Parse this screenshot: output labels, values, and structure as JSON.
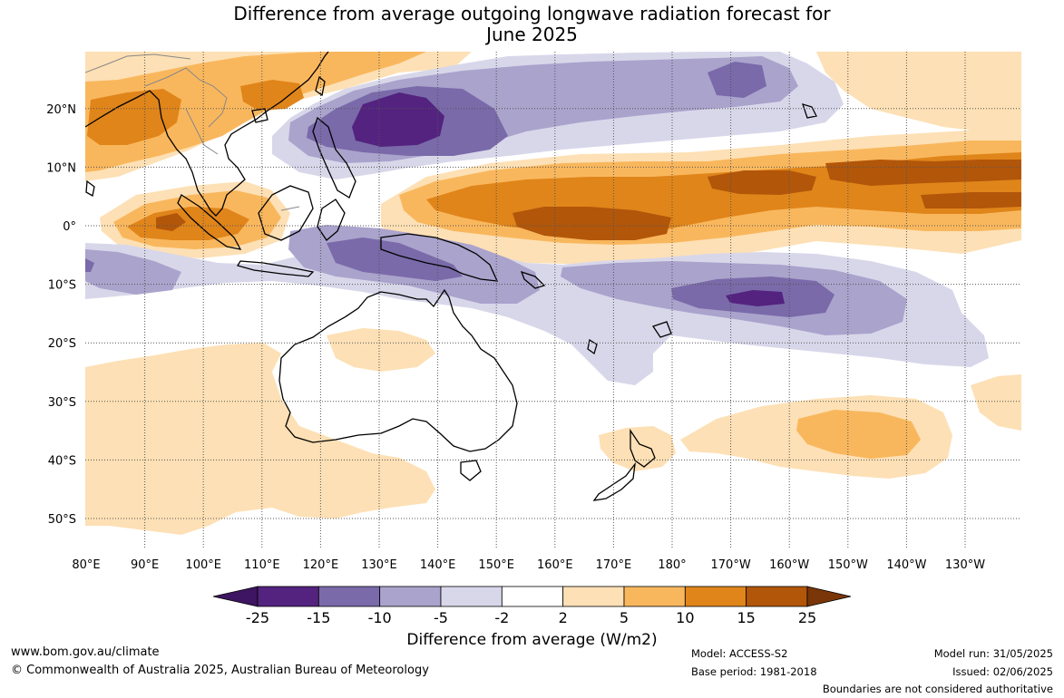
{
  "title_line1": "Difference from average outgoing longwave radiation forecast for",
  "title_line2": "June 2025",
  "lon_labels": [
    "80°E",
    "90°E",
    "100°E",
    "110°E",
    "120°E",
    "130°E",
    "140°E",
    "150°E",
    "160°E",
    "170°E",
    "180°",
    "170°W",
    "160°W",
    "150°W",
    "140°W",
    "130°W"
  ],
  "lat_labels": [
    "20°N",
    "10°N",
    "0°",
    "10°S",
    "20°S",
    "30°S",
    "40°S",
    "50°S"
  ],
  "colorbar": {
    "ticks": [
      "-25",
      "-15",
      "-10",
      "-5",
      "-2",
      "2",
      "5",
      "10",
      "15",
      "25"
    ],
    "colors": [
      "#3d1560",
      "#53237f",
      "#7a6aa9",
      "#aaa3cc",
      "#d8d7ea",
      "#ffffff",
      "#fde0b5",
      "#f9b75d",
      "#e0851a",
      "#b2560a",
      "#7a3608"
    ],
    "label": "Difference from average (W/m2)"
  },
  "footer": {
    "website": "www.bom.gov.au/climate",
    "copyright": "© Commonwealth of Australia 2025, Australian Bureau of Meteorology",
    "model": "Model: ACCESS-S2",
    "base_period": "Base period: 1981-2018",
    "model_run": "Model run: 31/05/2025",
    "issued": "Issued: 02/06/2025",
    "disclaimer": "Boundaries are not considered authoritative"
  }
}
